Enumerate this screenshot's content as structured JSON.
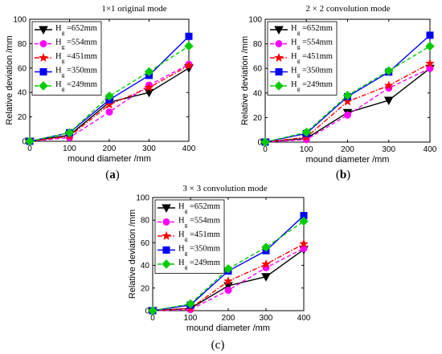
{
  "chart_data": [
    {
      "type": "line",
      "title": "1×1 original mode",
      "caption_letter": "a",
      "xlabel": "mound diameter /mm",
      "ylabel": "Relative deviation /mm",
      "x": [
        0,
        100,
        200,
        300,
        400
      ],
      "xlim": [
        0,
        400
      ],
      "ylim": [
        0,
        100
      ],
      "xticks": [
        0,
        100,
        200,
        300,
        400
      ],
      "yticks": [
        0,
        20,
        40,
        60,
        80,
        100
      ],
      "legend_position": "top-left",
      "series": [
        {
          "name_main": "H",
          "name_sub": "g",
          "name_rest": " =652mm",
          "color": "#000000",
          "marker": "triangle-down",
          "dash": "solid",
          "values": [
            0,
            5,
            32,
            40,
            60
          ]
        },
        {
          "name_main": "H",
          "name_sub": "g",
          "name_rest": " =554mm",
          "color": "#ff00ff",
          "marker": "circle",
          "dash": "dashed",
          "values": [
            0,
            3,
            24,
            46,
            63
          ]
        },
        {
          "name_main": "H",
          "name_sub": "g",
          "name_rest": " =451mm",
          "color": "#ff0000",
          "marker": "star",
          "dash": "dashdot",
          "values": [
            0,
            4,
            30,
            44,
            62
          ]
        },
        {
          "name_main": "H",
          "name_sub": "g",
          "name_rest": " =350mm",
          "color": "#0000ff",
          "marker": "square",
          "dash": "solid",
          "values": [
            0,
            7,
            34,
            54,
            86
          ]
        },
        {
          "name_main": "H",
          "name_sub": "g",
          "name_rest": " =249mm",
          "color": "#00cc00",
          "marker": "diamond",
          "dash": "dashed",
          "values": [
            0,
            7,
            37,
            57,
            78
          ]
        }
      ]
    },
    {
      "type": "line",
      "title": "2 × 2 convolution mode",
      "caption_letter": "b",
      "xlabel": "mound diameter /mm",
      "ylabel": "Relative deviation /mm",
      "x": [
        0,
        100,
        200,
        300,
        400
      ],
      "xlim": [
        0,
        400
      ],
      "ylim": [
        0,
        100
      ],
      "xticks": [
        0,
        100,
        200,
        300,
        400
      ],
      "yticks": [
        0,
        20,
        40,
        60,
        80,
        100
      ],
      "legend_position": "top-left",
      "series": [
        {
          "name_main": "H",
          "name_sub": "g",
          "name_rest": " =652mm",
          "color": "#000000",
          "marker": "triangle-down",
          "dash": "solid",
          "values": [
            0,
            3,
            24,
            34,
            60
          ]
        },
        {
          "name_main": "H",
          "name_sub": "g",
          "name_rest": " =554mm",
          "color": "#ff00ff",
          "marker": "circle",
          "dash": "dashed",
          "values": [
            0,
            2,
            22,
            44,
            60
          ]
        },
        {
          "name_main": "H",
          "name_sub": "g",
          "name_rest": " =451mm",
          "color": "#ff0000",
          "marker": "star",
          "dash": "dashdot",
          "values": [
            0,
            4,
            33,
            46,
            64
          ]
        },
        {
          "name_main": "H",
          "name_sub": "g",
          "name_rest": " =350mm",
          "color": "#0000ff",
          "marker": "square",
          "dash": "solid",
          "values": [
            0,
            7,
            37,
            57,
            87
          ]
        },
        {
          "name_main": "H",
          "name_sub": "g",
          "name_rest": " =249mm",
          "color": "#00cc00",
          "marker": "diamond",
          "dash": "dashed",
          "values": [
            0,
            8,
            38,
            58,
            78
          ]
        }
      ]
    },
    {
      "type": "line",
      "title": "3 × 3 convolution mode",
      "caption_letter": "c",
      "xlabel": "mound diameter /mm",
      "ylabel": "Relative deviation /mm",
      "x": [
        0,
        100,
        200,
        300,
        400
      ],
      "xlim": [
        0,
        400
      ],
      "ylim": [
        0,
        100
      ],
      "xticks": [
        0,
        100,
        200,
        300,
        400
      ],
      "yticks": [
        0,
        20,
        40,
        60,
        80,
        100
      ],
      "legend_position": "top-left",
      "series": [
        {
          "name_main": "H",
          "name_sub": "g",
          "name_rest": " =652mm",
          "color": "#000000",
          "marker": "triangle-down",
          "dash": "solid",
          "values": [
            0,
            2,
            22,
            30,
            54
          ]
        },
        {
          "name_main": "H",
          "name_sub": "g",
          "name_rest": " =554mm",
          "color": "#ff00ff",
          "marker": "circle",
          "dash": "dashed",
          "values": [
            0,
            1,
            18,
            38,
            55
          ]
        },
        {
          "name_main": "H",
          "name_sub": "g",
          "name_rest": " =451mm",
          "color": "#ff0000",
          "marker": "star",
          "dash": "dashdot",
          "values": [
            0,
            2,
            26,
            41,
            59
          ]
        },
        {
          "name_main": "H",
          "name_sub": "g",
          "name_rest": " =350mm",
          "color": "#0000ff",
          "marker": "square",
          "dash": "solid",
          "values": [
            0,
            5,
            35,
            53,
            84
          ]
        },
        {
          "name_main": "H",
          "name_sub": "g",
          "name_rest": " =249mm",
          "color": "#00cc00",
          "marker": "diamond",
          "dash": "dashed",
          "values": [
            0,
            6,
            37,
            56,
            79
          ]
        }
      ]
    }
  ]
}
